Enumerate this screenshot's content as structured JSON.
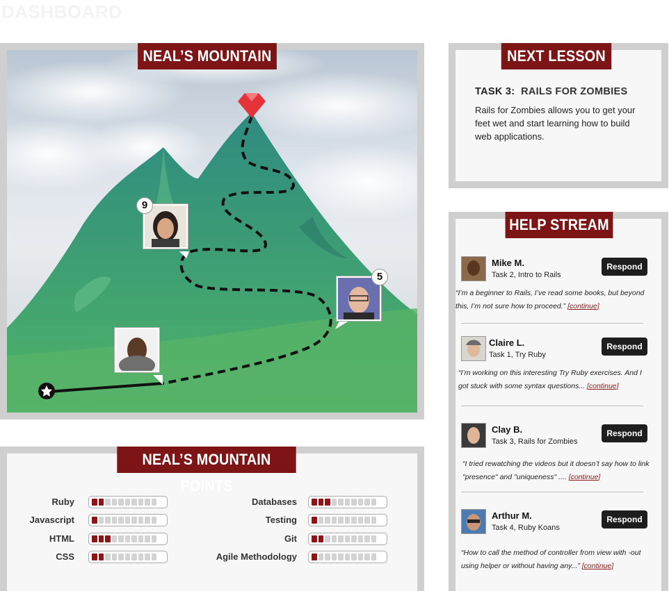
{
  "page": {
    "title": "DASHBOARD"
  },
  "mountain": {
    "title": "NEAL’S MOUNTAIN",
    "badges": {
      "upper": "9",
      "right": "5"
    }
  },
  "next_lesson": {
    "title": "NEXT LESSON",
    "task_label": "TASK 3:",
    "task_name": "RAILS FOR ZOMBIES",
    "description": "Rails for Zombies allows you to get your feet wet and start learning how to build web applications."
  },
  "help_stream": {
    "title": "HELP STREAM",
    "respond_label": "Respond",
    "continue_label": "[continue]",
    "items": [
      {
        "name": "Mike M.",
        "task": "Task 2, Intro to Rails",
        "quote": "“I’m a beginner to Rails, I’ve read some books, but beyond this, I’m not sure how to proceed.”"
      },
      {
        "name": "Claire L.",
        "task": "Task 1, Try Ruby",
        "quote": "“I’m working on this interesting Try Ruby exercises. And I got stuck with some syntax questions..."
      },
      {
        "name": "Clay B.",
        "task": "Task 3, Rails for Zombies",
        "quote": "“I tried rewatching the videos but it doesn’t say how to link \"presence\" and \"uniqueness\" ...."
      },
      {
        "name": "Arthur M.",
        "task": "Task 4, Ruby Koans",
        "quote": "“How to call the method of controller from view with -out using helper or without having any...”"
      }
    ]
  },
  "points": {
    "title": "NEAL’S MOUNTAIN POINTS",
    "segments_total": 10,
    "left": [
      {
        "label": "Ruby",
        "level": 2
      },
      {
        "label": "Javascript",
        "level": 1
      },
      {
        "label": "HTML",
        "level": 3
      },
      {
        "label": "CSS",
        "level": 2
      }
    ],
    "right": [
      {
        "label": "Databases",
        "level": 3
      },
      {
        "label": "Testing",
        "level": 1
      },
      {
        "label": "Git",
        "level": 2
      },
      {
        "label": "Agile Methodology",
        "level": 1
      }
    ]
  },
  "colors": {
    "banner": "#7d1416",
    "meter_on": "#8a1619",
    "mountain": "#3f9b78"
  }
}
